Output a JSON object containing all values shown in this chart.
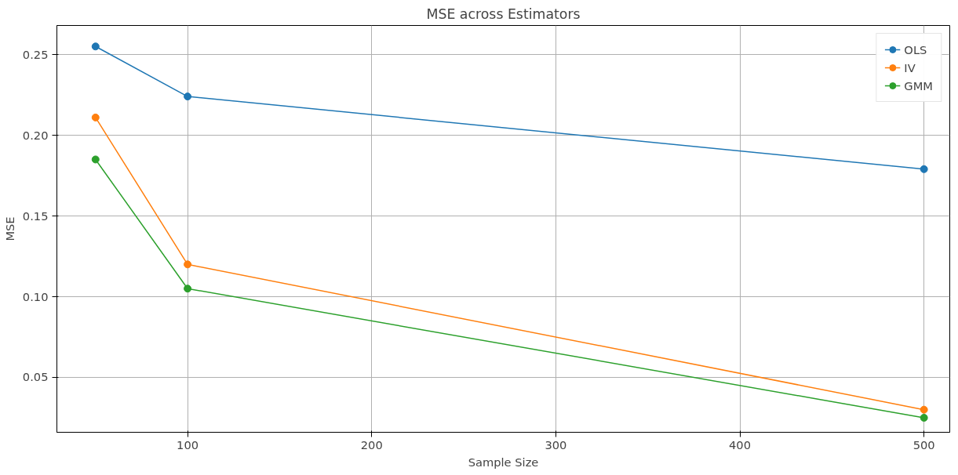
{
  "chart_data": {
    "type": "line",
    "title": "MSE across Estimators",
    "xlabel": "Sample Size",
    "ylabel": "MSE",
    "x": [
      50,
      100,
      500
    ],
    "series": [
      {
        "name": "OLS",
        "color": "#1f77b4",
        "values": [
          0.255,
          0.224,
          0.179
        ]
      },
      {
        "name": "IV",
        "color": "#ff7f0e",
        "values": [
          0.211,
          0.12,
          0.03
        ]
      },
      {
        "name": "GMM",
        "color": "#2ca02c",
        "values": [
          0.185,
          0.105,
          0.025
        ]
      }
    ],
    "xlim": [
      29,
      514
    ],
    "ylim": [
      0.016,
      0.268
    ],
    "xticks": [
      100,
      200,
      300,
      400,
      500
    ],
    "yticks": [
      {
        "value": 0.05,
        "label": "0.05"
      },
      {
        "value": 0.1,
        "label": "0.10"
      },
      {
        "value": 0.15,
        "label": "0.15"
      },
      {
        "value": 0.2,
        "label": "0.20"
      },
      {
        "value": 0.25,
        "label": "0.25"
      }
    ],
    "grid": true,
    "legend": "top right",
    "marker": "circle",
    "line_style": "solid"
  }
}
